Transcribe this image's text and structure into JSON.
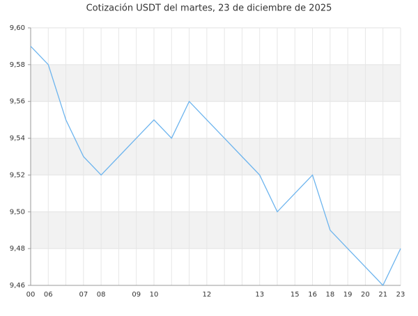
{
  "chart_data": {
    "type": "line",
    "title": "Cotización USDT del martes, 23 de diciembre de 2025",
    "categories": [
      "00",
      "06",
      null,
      "07",
      "08",
      null,
      "09",
      "10",
      null,
      null,
      "12",
      null,
      null,
      "13",
      null,
      "15",
      "16",
      "18",
      "19",
      "20",
      "21",
      "23"
    ],
    "values": [
      9.59,
      9.58,
      9.55,
      9.53,
      9.52,
      9.53,
      9.54,
      9.55,
      9.54,
      9.56,
      9.55,
      9.54,
      9.53,
      9.52,
      9.5,
      9.51,
      9.52,
      9.49,
      9.48,
      9.47,
      9.46,
      9.48
    ],
    "color": "#6cb4ee",
    "ylim": [
      9.46,
      9.6
    ],
    "yticks": [
      {
        "value": 9.46,
        "label": "9,46"
      },
      {
        "value": 9.48,
        "label": "9,48"
      },
      {
        "value": 9.5,
        "label": "9,50"
      },
      {
        "value": 9.52,
        "label": "9,52"
      },
      {
        "value": 9.54,
        "label": "9,54"
      },
      {
        "value": 9.56,
        "label": "9,56"
      },
      {
        "value": 9.58,
        "label": "9,58"
      },
      {
        "value": 9.6,
        "label": "9,60"
      }
    ],
    "grid": true
  }
}
